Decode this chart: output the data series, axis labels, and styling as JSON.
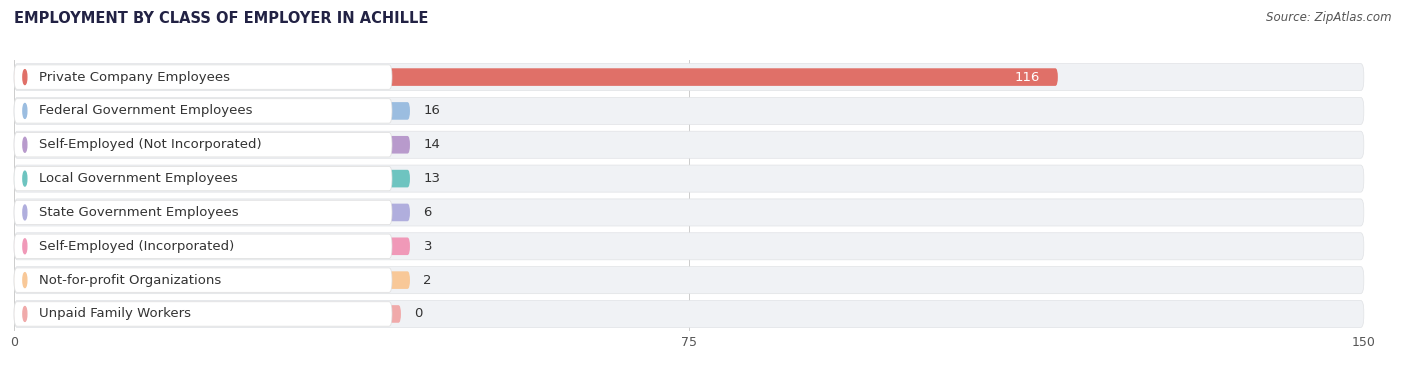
{
  "title": "EMPLOYMENT BY CLASS OF EMPLOYER IN ACHILLE",
  "source": "Source: ZipAtlas.com",
  "categories": [
    "Private Company Employees",
    "Federal Government Employees",
    "Self-Employed (Not Incorporated)",
    "Local Government Employees",
    "State Government Employees",
    "Self-Employed (Incorporated)",
    "Not-for-profit Organizations",
    "Unpaid Family Workers"
  ],
  "values": [
    116,
    16,
    14,
    13,
    6,
    3,
    2,
    0
  ],
  "bar_colors": [
    "#e07068",
    "#9bbde0",
    "#b89acc",
    "#6ec4c0",
    "#b0aedd",
    "#f099b8",
    "#f8c898",
    "#f0aaaa"
  ],
  "xlim": [
    0,
    150
  ],
  "xticks": [
    0,
    75,
    150
  ],
  "background_color": "#ffffff",
  "row_bg": "#f0f2f5",
  "row_border": "#e0e2e5",
  "title_fontsize": 10.5,
  "label_fontsize": 9.5,
  "value_fontsize": 9.5,
  "source_fontsize": 8.5
}
